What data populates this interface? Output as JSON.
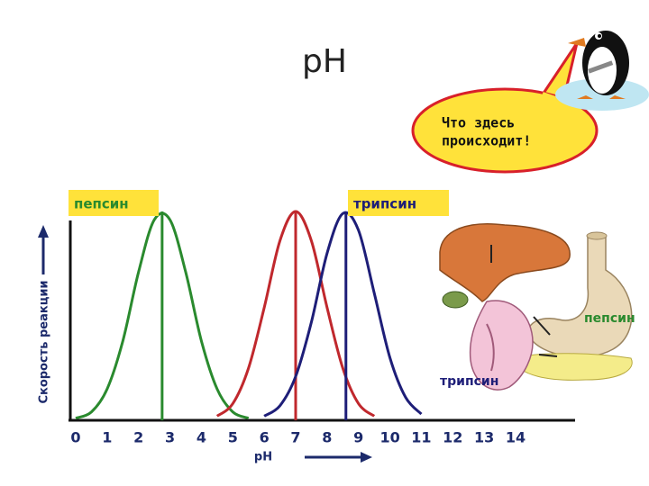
{
  "chart_data": {
    "type": "line",
    "title": "pH",
    "x_label": "pH",
    "y_label": "Скорость реакции",
    "x": [
      0,
      0.5,
      1,
      1.5,
      2,
      2.5,
      3,
      3.5,
      4,
      4.5,
      5,
      5.5,
      6,
      6.5,
      7,
      7.5,
      8,
      8.5,
      9,
      9.5,
      10,
      10.5,
      11,
      11.5,
      12,
      12.5,
      13,
      13.5,
      14
    ],
    "series": [
      {
        "name": "пепсин",
        "color": "#2a8a2e",
        "optimum": 2.75,
        "values": [
          1,
          4,
          15,
          38,
          71,
          96,
          96,
          71,
          38,
          15,
          4,
          1,
          null,
          null,
          null,
          null,
          null,
          null,
          null,
          null,
          null,
          null,
          null,
          null,
          null,
          null,
          null,
          null,
          null
        ]
      },
      {
        "color": "#c0282d",
        "optimum": 7,
        "values": [
          null,
          null,
          null,
          null,
          null,
          null,
          null,
          null,
          null,
          2,
          8,
          25,
          54,
          86,
          100,
          86,
          54,
          25,
          8,
          2,
          null,
          null,
          null,
          null,
          null,
          null,
          null,
          null,
          null
        ]
      },
      {
        "name": "трипсин",
        "color": "#1e1e78",
        "optimum": 8.6,
        "values": [
          null,
          null,
          null,
          null,
          null,
          null,
          null,
          null,
          null,
          null,
          null,
          null,
          2,
          7,
          21,
          47,
          80,
          99,
          91,
          61,
          30,
          11,
          3,
          null,
          null,
          null,
          null,
          null,
          null
        ]
      }
    ],
    "xlim": [
      0,
      14
    ],
    "xticks": [
      0,
      1,
      2,
      3,
      4,
      5,
      6,
      7,
      8,
      9,
      10,
      11,
      12,
      13,
      14
    ],
    "ylim": [
      0,
      100
    ],
    "annotations": {
      "speech": [
        "Что здесь",
        "происходит!"
      ],
      "organ_labels": [
        {
          "text": "пепсин",
          "color": "#2a8a2e"
        },
        {
          "text": "трипсин",
          "color": "#1e1e78"
        }
      ]
    }
  }
}
